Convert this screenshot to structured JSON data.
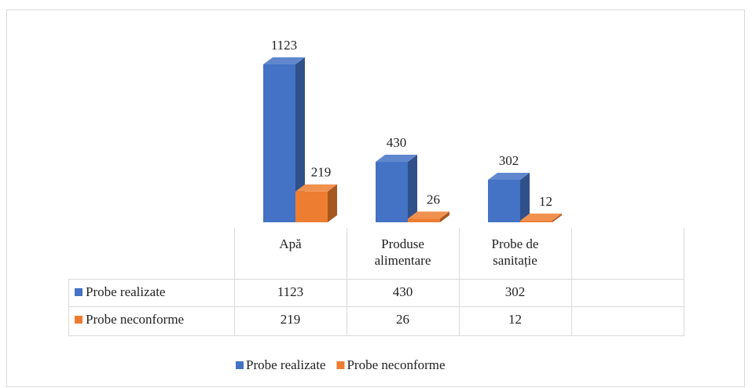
{
  "chart_data": {
    "type": "bar",
    "categories": [
      "Apă",
      "Produse alimentare",
      "Probe de sanitație"
    ],
    "series": [
      {
        "name": "Probe realizate",
        "color": "#4472c4",
        "values": [
          1123,
          430,
          302
        ]
      },
      {
        "name": "Probe neconforme",
        "color": "#ed7d31",
        "values": [
          219,
          26,
          12
        ]
      }
    ],
    "legend": "bottom"
  }
}
